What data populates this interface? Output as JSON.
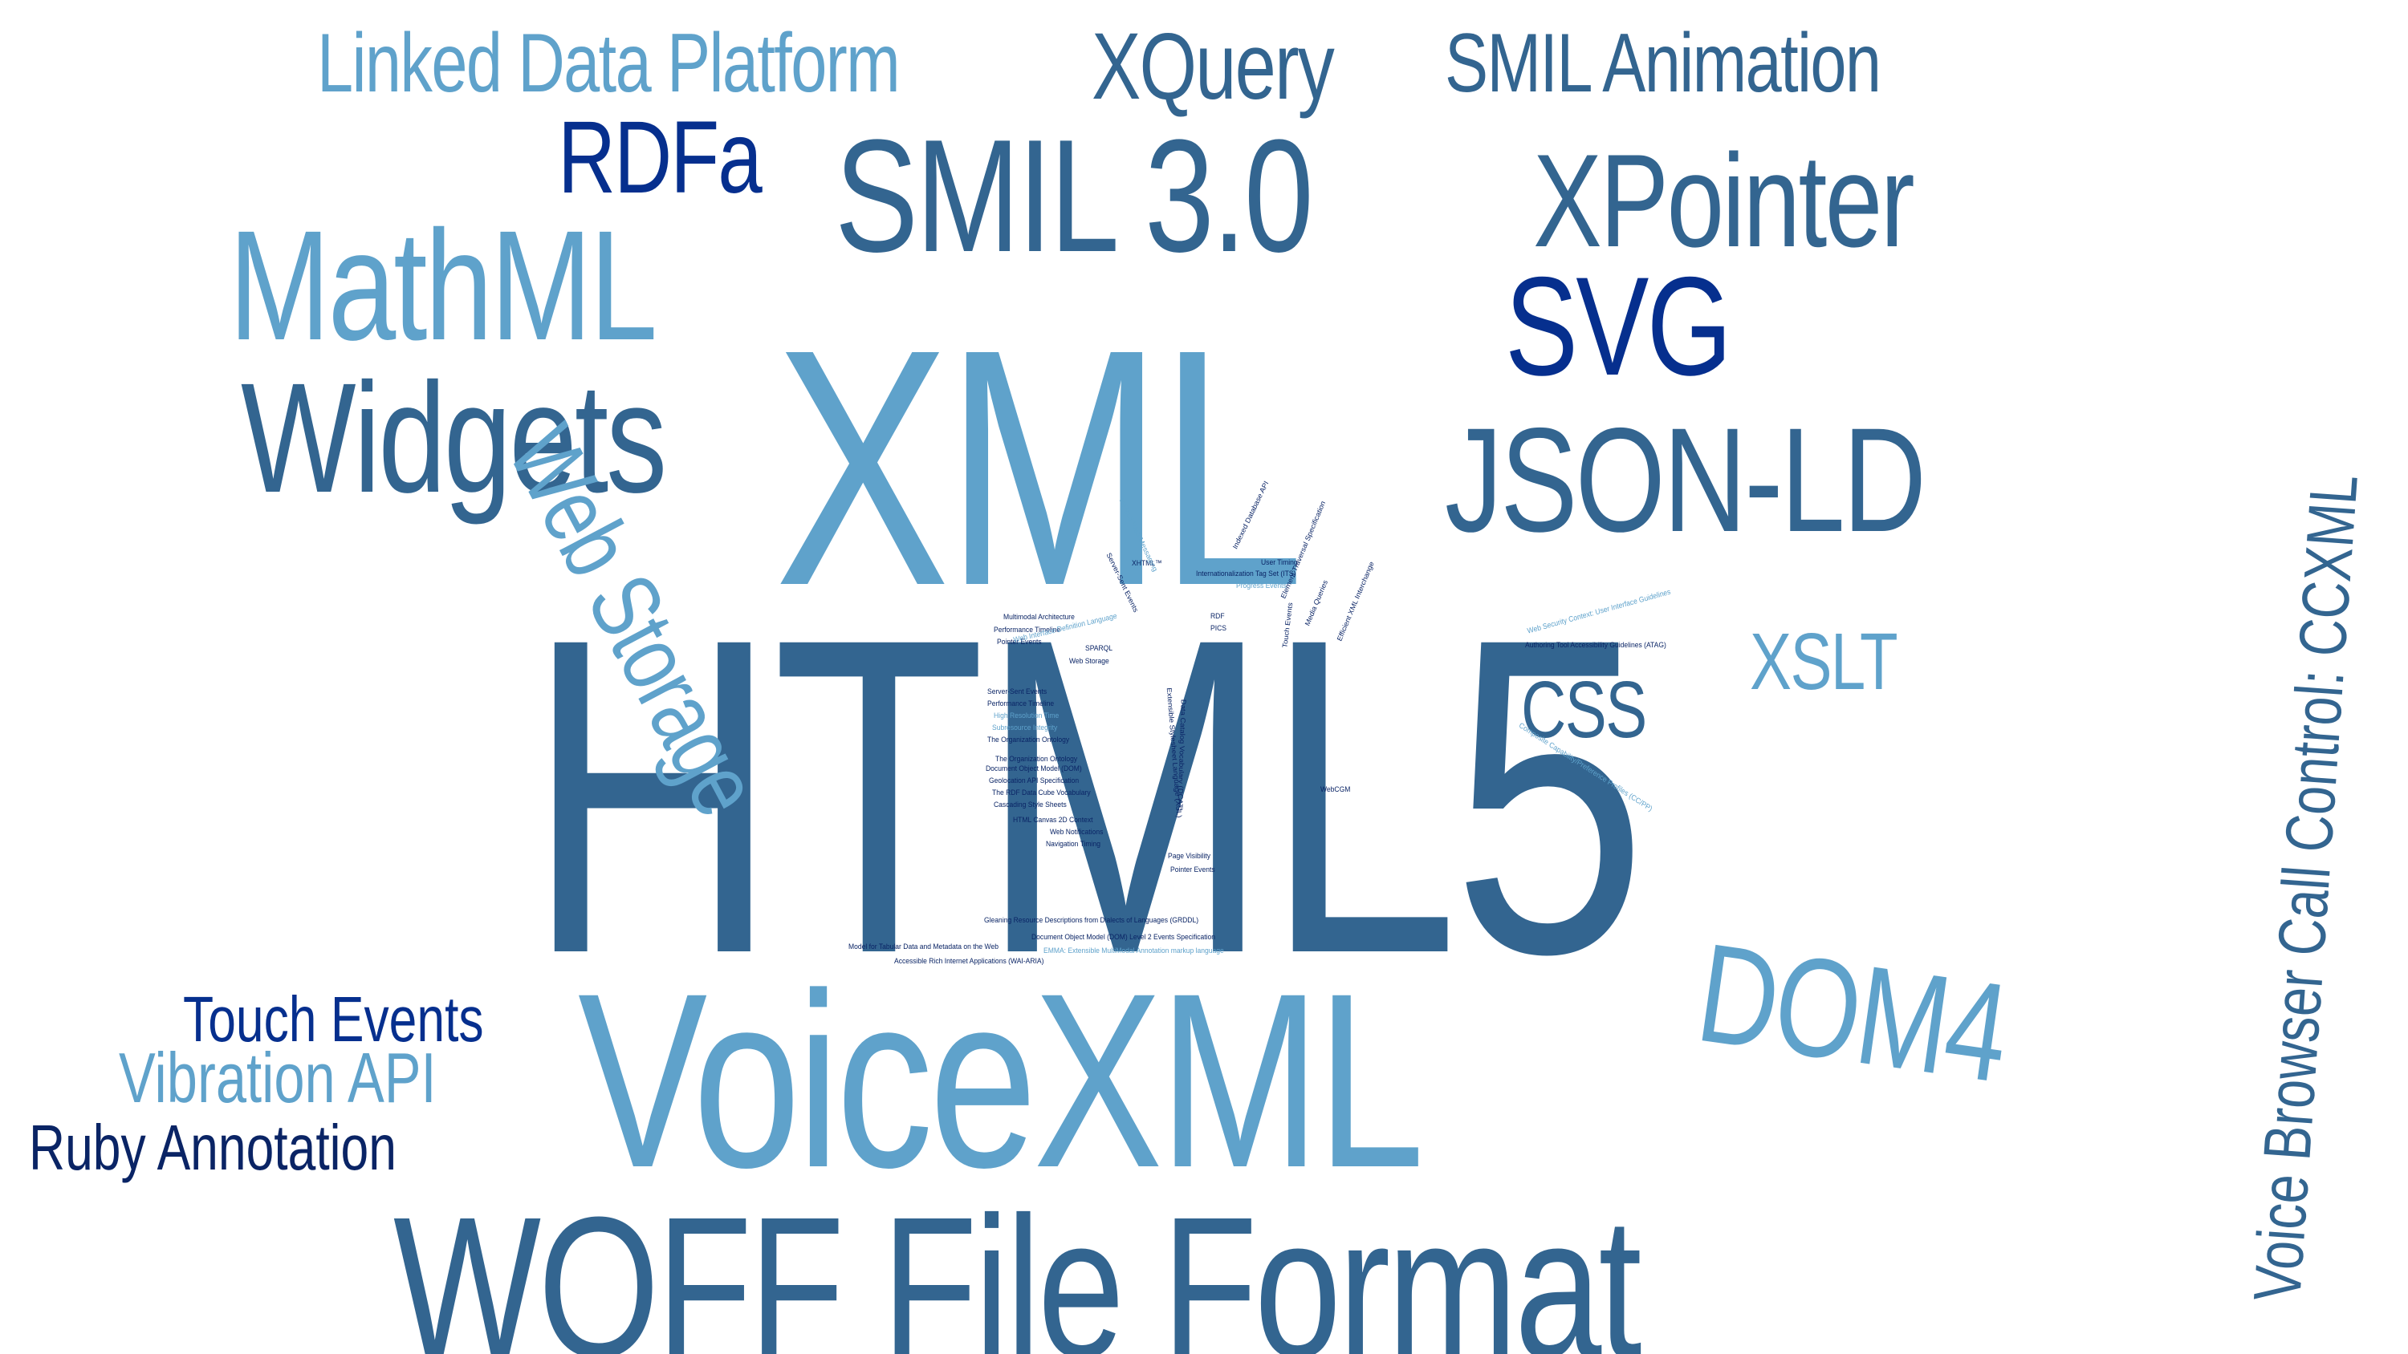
{
  "colors": {
    "light": "#5fa2cb",
    "medium": "#336590",
    "dark": "#062f8e",
    "navy": "#0a2465"
  },
  "words": [
    {
      "text": "HTML5",
      "color": "medium"
    },
    {
      "text": "XML",
      "color": "light"
    },
    {
      "text": "VoiceXML",
      "color": "light"
    },
    {
      "text": "WOFF File Format",
      "color": "medium"
    },
    {
      "text": "SMIL 3.0",
      "color": "medium"
    },
    {
      "text": "MathML",
      "color": "light"
    },
    {
      "text": "Widgets",
      "color": "medium"
    },
    {
      "text": "JSON-LD",
      "color": "medium"
    },
    {
      "text": "XPointer",
      "color": "medium"
    },
    {
      "text": "SVG",
      "color": "dark"
    },
    {
      "text": "DOM4",
      "color": "light"
    },
    {
      "text": "Voice Browser Call Control: CCXML",
      "color": "medium"
    },
    {
      "text": "Web Storage",
      "color": "light"
    },
    {
      "text": "XQuery",
      "color": "medium"
    },
    {
      "text": "SMIL Animation",
      "color": "medium"
    },
    {
      "text": "Linked Data Platform",
      "color": "light"
    },
    {
      "text": "RDFa",
      "color": "dark"
    },
    {
      "text": "XSLT",
      "color": "light"
    },
    {
      "text": "CSS",
      "color": "medium"
    },
    {
      "text": "Touch Events",
      "color": "dark"
    },
    {
      "text": "Vibration API",
      "color": "light"
    },
    {
      "text": "Ruby Annotation",
      "color": "navy"
    },
    {
      "text": "Multimodal Architecture",
      "color": "navy"
    },
    {
      "text": "Performance Timeline",
      "color": "navy"
    },
    {
      "text": "Pointer Events",
      "color": "navy"
    },
    {
      "text": "SPARQL",
      "color": "navy"
    },
    {
      "text": "Web Storage",
      "color": "navy"
    },
    {
      "text": "Server-Sent Events",
      "color": "navy"
    },
    {
      "text": "Performance Timeline",
      "color": "navy"
    },
    {
      "text": "High Resolution Time",
      "color": "light"
    },
    {
      "text": "Subresource Integrity",
      "color": "light"
    },
    {
      "text": "The Organization Ontology",
      "color": "navy"
    },
    {
      "text": "The Organization Ontology",
      "color": "navy"
    },
    {
      "text": "Document Object Model (DOM)",
      "color": "navy"
    },
    {
      "text": "Geolocation API Specification",
      "color": "navy"
    },
    {
      "text": "The RDF Data Cube Vocabulary",
      "color": "navy"
    },
    {
      "text": "Cascading Style Sheets",
      "color": "navy"
    },
    {
      "text": "HTML Canvas 2D Context",
      "color": "navy"
    },
    {
      "text": "Web Notifications",
      "color": "navy"
    },
    {
      "text": "Navigation Timing",
      "color": "navy"
    },
    {
      "text": "User Timing",
      "color": "navy"
    },
    {
      "text": "Internationalization Tag Set (ITS)",
      "color": "navy"
    },
    {
      "text": "Progress Events",
      "color": "light"
    },
    {
      "text": "XHTML™",
      "color": "navy"
    },
    {
      "text": "Indexed Database API",
      "color": "navy"
    },
    {
      "text": "HTML5 Web Messaging",
      "color": "light"
    },
    {
      "text": "Server-Sent Events",
      "color": "navy"
    },
    {
      "text": "RDF",
      "color": "navy"
    },
    {
      "text": "PICS",
      "color": "navy"
    },
    {
      "text": "Web Security Context: User Interface Guidelines",
      "color": "light"
    },
    {
      "text": "Authoring Tool Accessibility Guidelines (ATAG)",
      "color": "navy"
    },
    {
      "text": "Page Visibility",
      "color": "navy"
    },
    {
      "text": "Pointer Events",
      "color": "navy"
    },
    {
      "text": "WebCGM",
      "color": "navy"
    },
    {
      "text": "Gleaning Resource Descriptions from Dialects of Languages (GRDDL)",
      "color": "navy"
    },
    {
      "text": "Document Object Model (DOM) Level 2 Events Specification",
      "color": "navy"
    },
    {
      "text": "Model for Tabular Data and Metadata on the Web",
      "color": "navy"
    },
    {
      "text": "EMMA: Extensible MultiModal Annotation markup language",
      "color": "light"
    },
    {
      "text": "Accessible Rich Internet Applications (WAI-ARIA)",
      "color": "navy"
    },
    {
      "text": "Composite Capability/Preference Profiles (CC/PP)",
      "color": "light"
    },
    {
      "text": "Data Catalog Vocabulary (DCAT)",
      "color": "navy"
    },
    {
      "text": "Extensible Stylesheet Language (XSL)",
      "color": "navy"
    },
    {
      "text": "Element Traversal Specification",
      "color": "navy"
    },
    {
      "text": "Media Queries",
      "color": "navy"
    },
    {
      "text": "Efficient XML Interchange",
      "color": "navy"
    },
    {
      "text": "Touch Events",
      "color": "navy"
    },
    {
      "text": "Web Interface Definition Language",
      "color": "light"
    }
  ]
}
